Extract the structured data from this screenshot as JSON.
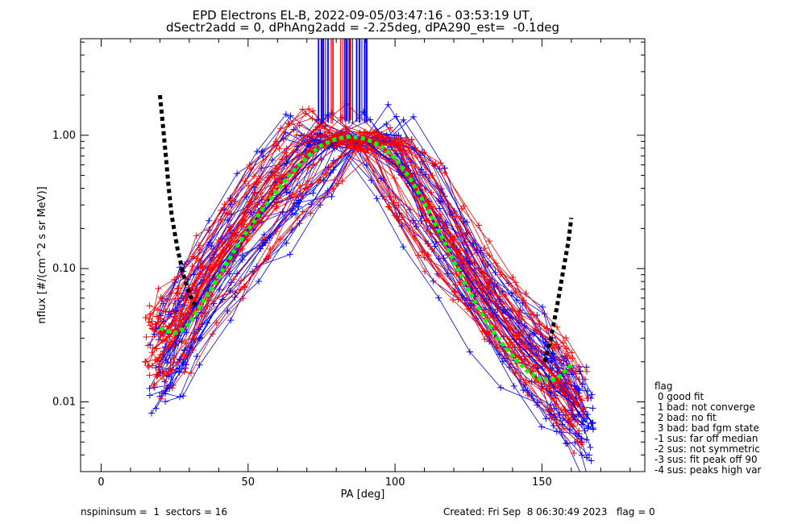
{
  "title_line1": "EPD Electrons EL-B, 2022-09-05/03:47:16 - 03:53:19 UT,",
  "title_line2": "dSectr2add = 0, dPhAng2add = -2.25deg, dPA290_est=  -0.1deg",
  "legend": {
    "heading": "flag",
    "items": [
      " 0 good fit",
      " 1 bad: not converge",
      " 2 bad: no fit",
      " 3 bad: bad fgm state",
      "-1 sus: far off median",
      "-2 sus: not symmetric",
      "-3 sus: fit peak off 90",
      "-4 sus: peaks high var"
    ]
  },
  "footer": {
    "left": "nspininsum =  1  sectors = 16",
    "right": "Created: Fri Sep  8 06:30:49 2023   flag = 0"
  },
  "colors": {
    "red_series": "#ff0000",
    "blue_series": "#0000ff",
    "median_fit": "#00ff00",
    "edge_fit": "#000000"
  },
  "chart_data": {
    "type": "line",
    "xlabel": "PA [deg]",
    "ylabel": "nflux [#/(cm^2 s sr MeV)]",
    "xlim": [
      -7,
      185
    ],
    "ylim": [
      0.003,
      5.3
    ],
    "yscale": "log",
    "xticks": [
      0,
      50,
      100,
      150
    ],
    "yticks": [
      0.01,
      0.1,
      1.0
    ],
    "ytick_labels": [
      "0.01",
      "0.10",
      "1.00"
    ],
    "grid": false,
    "series": [
      {
        "color": "blue",
        "x": [
          20,
          25,
          30,
          40,
          50,
          60,
          70,
          80,
          85,
          90,
          100,
          110,
          120,
          130,
          140,
          150,
          155,
          160,
          165
        ],
        "y": [
          0.02,
          0.028,
          0.045,
          0.1,
          0.2,
          0.35,
          0.6,
          0.9,
          0.95,
          0.9,
          0.6,
          0.3,
          0.12,
          0.06,
          0.03,
          0.018,
          0.012,
          0.01,
          0.007
        ]
      },
      {
        "color": "red",
        "x": [
          18,
          22,
          28,
          35,
          45,
          55,
          65,
          75,
          85,
          95,
          105,
          115,
          125,
          135,
          145,
          155,
          162
        ],
        "y": [
          0.025,
          0.03,
          0.04,
          0.08,
          0.15,
          0.3,
          0.55,
          0.85,
          0.95,
          0.85,
          0.45,
          0.2,
          0.1,
          0.05,
          0.025,
          0.015,
          0.01
        ]
      },
      {
        "color": "green",
        "x": [
          20,
          22,
          25,
          27,
          30,
          35,
          40,
          45,
          50,
          55,
          60,
          65,
          70,
          75,
          80,
          85,
          90,
          95,
          100,
          105,
          110,
          115,
          120,
          125,
          130,
          135,
          140,
          145,
          150,
          155,
          160
        ],
        "y": [
          0.036,
          0.034,
          0.033,
          0.034,
          0.039,
          0.058,
          0.087,
          0.133,
          0.196,
          0.28,
          0.39,
          0.53,
          0.69,
          0.84,
          0.94,
          0.98,
          0.94,
          0.84,
          0.67,
          0.48,
          0.31,
          0.19,
          0.114,
          0.069,
          0.044,
          0.03,
          0.022,
          0.017,
          0.0145,
          0.0148,
          0.019
        ]
      },
      {
        "color": "black",
        "x": [
          20,
          21,
          22,
          23,
          24,
          26,
          28,
          30,
          32
        ],
        "y": [
          2.0,
          1.2,
          0.7,
          0.4,
          0.25,
          0.14,
          0.09,
          0.065,
          0.052
        ]
      },
      {
        "color": "black",
        "x": [
          151,
          153,
          155,
          157,
          159,
          160
        ],
        "y": [
          0.02,
          0.03,
          0.05,
          0.09,
          0.16,
          0.24
        ]
      }
    ]
  }
}
